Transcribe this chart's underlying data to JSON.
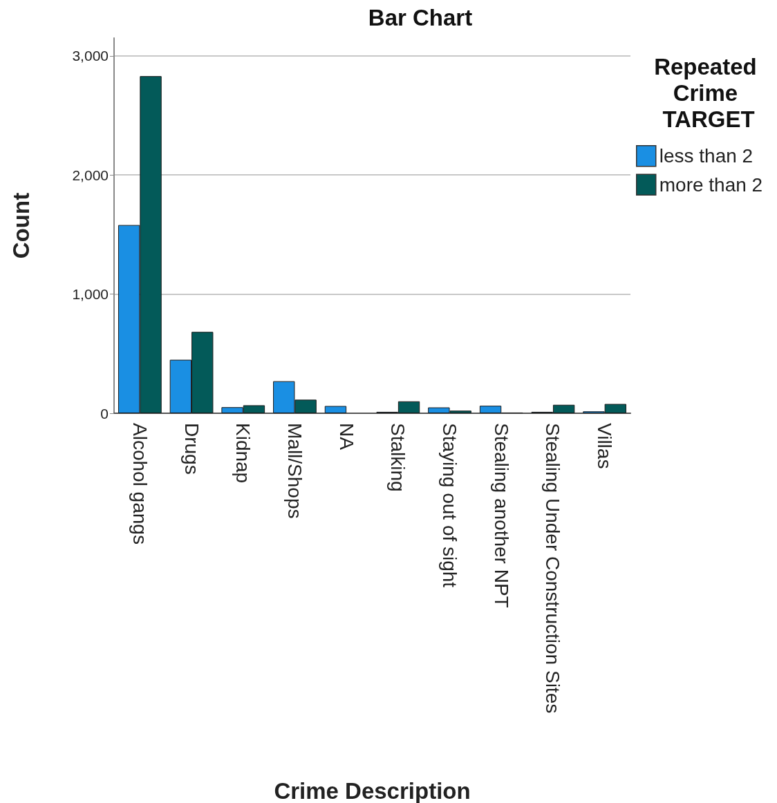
{
  "chart_data": {
    "type": "bar",
    "title": "Bar Chart",
    "xlabel": "Crime Description",
    "ylabel": "Count",
    "legend_title": "Repeated Crime TARGET",
    "categories": [
      "Alcohol gangs",
      "Drugs",
      "Kidnap",
      "Mall/Shops",
      "NA",
      "Stalking",
      "Staying out of sight",
      "Stealing another NPT",
      "Stealing Under Construction Sites",
      "Villas"
    ],
    "series": [
      {
        "name": "less than 2",
        "color": "#1a8fe3",
        "values": [
          1580,
          449,
          51,
          269,
          61,
          12,
          49,
          63,
          12,
          16
        ]
      },
      {
        "name": "more than 2",
        "color": "#035a59",
        "values": [
          2830,
          683,
          67,
          114,
          null,
          100,
          22,
          6,
          71,
          78
        ]
      }
    ],
    "ylim": [
      0,
      3150
    ],
    "yticks": [
      {
        "value": 0,
        "label": "0"
      },
      {
        "value": 1000,
        "label": "1,000"
      },
      {
        "value": 2000,
        "label": "2,000"
      },
      {
        "value": 3000,
        "label": "3,000"
      }
    ],
    "grid": "y",
    "legend": "top right"
  }
}
